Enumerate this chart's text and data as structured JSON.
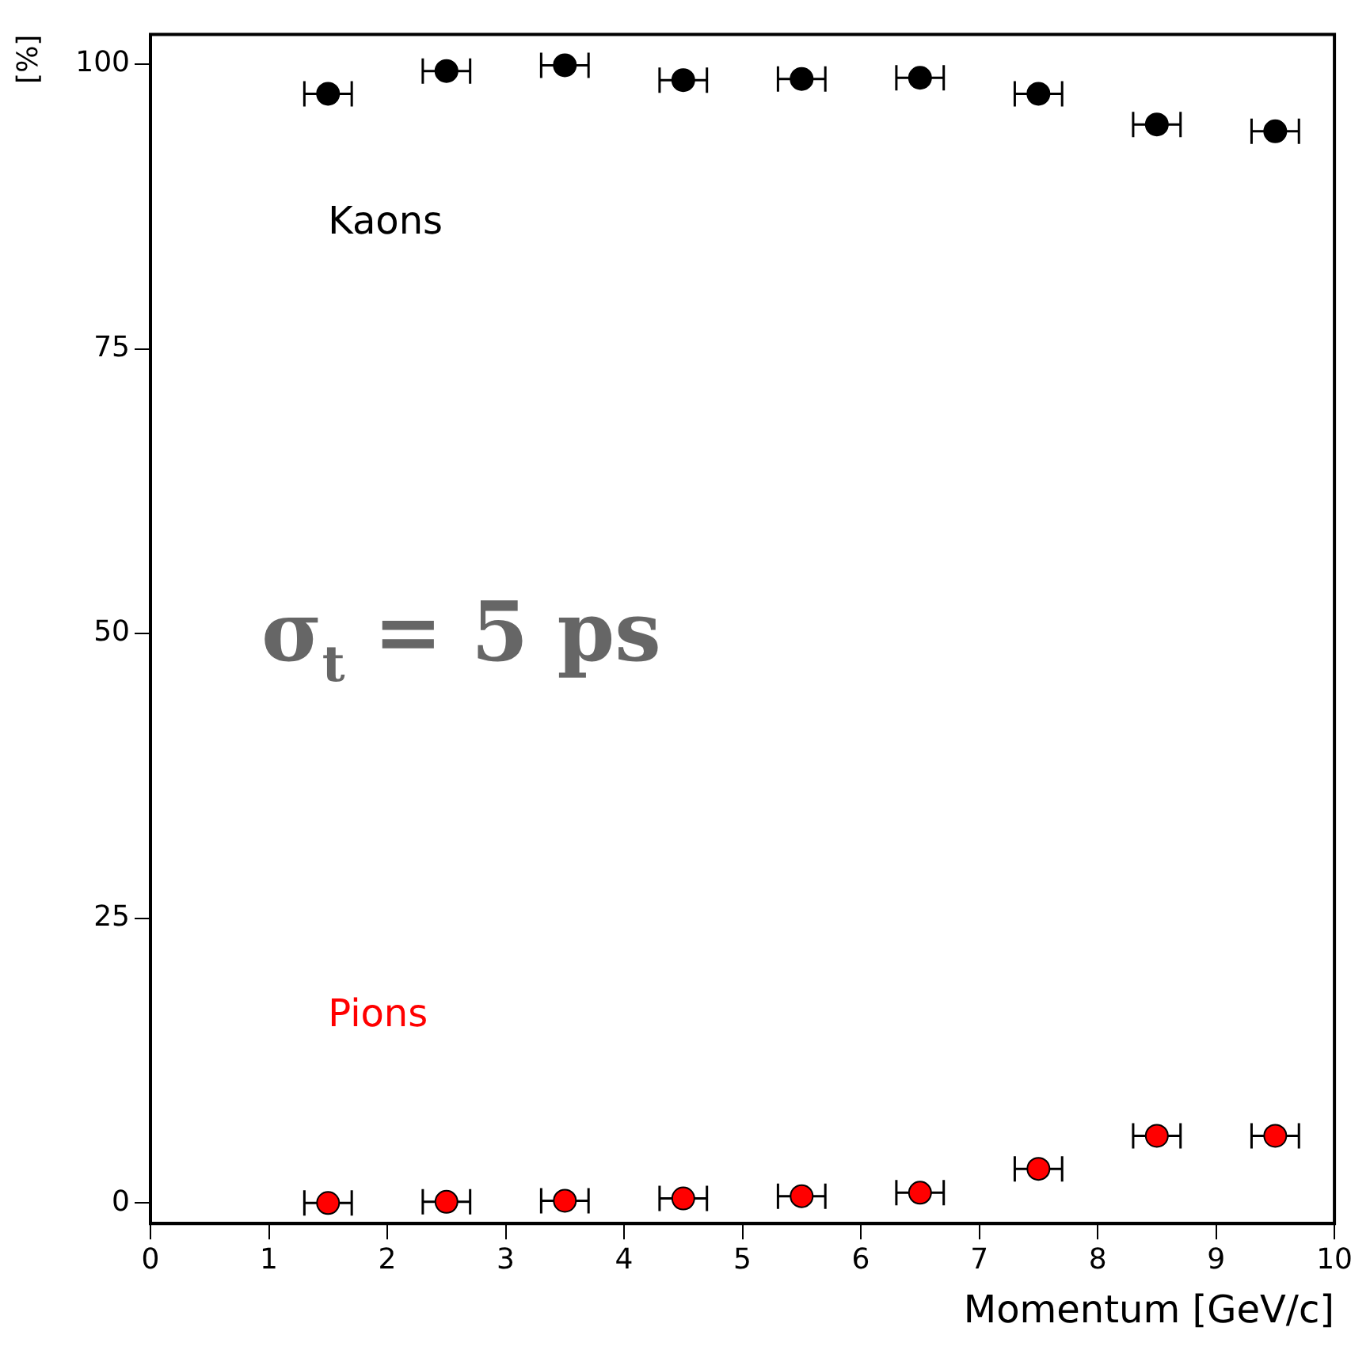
{
  "chart_data": {
    "type": "scatter",
    "xlabel": "Momentum [GeV/c]",
    "ylabel": "[%]",
    "annotations": [
      "σ$_{t}$ = 5 ps"
    ],
    "xlim": [
      0,
      10
    ],
    "ylim": [
      -1.8,
      102.6
    ],
    "xticks": [
      0,
      1,
      2,
      3,
      4,
      5,
      6,
      7,
      8,
      9,
      10
    ],
    "yticks": [
      0,
      25,
      50,
      75,
      100
    ],
    "marker": "circle",
    "grid": false,
    "legend": false,
    "series": [
      {
        "name": "Kaons",
        "color": "#000000",
        "x": [
          1.5,
          2.5,
          3.5,
          4.5,
          5.5,
          6.5,
          7.5,
          8.5,
          9.5
        ],
        "values": [
          97.4,
          99.4,
          99.9,
          98.6,
          98.7,
          98.8,
          97.4,
          94.7,
          94.1
        ],
        "xerrors": [
          0.2,
          0.2,
          0.2,
          0.2,
          0.2,
          0.2,
          0.2,
          0.2,
          0.2
        ]
      },
      {
        "name": "Pions",
        "color": "#ff0000",
        "x": [
          1.5,
          2.5,
          3.5,
          4.5,
          5.5,
          6.5,
          7.5,
          8.5,
          9.5
        ],
        "values": [
          0,
          0.1,
          0.2,
          0.4,
          0.6,
          0.9,
          3,
          5.9,
          5.9
        ],
        "xerrors": [
          0.2,
          0.2,
          0.2,
          0.2,
          0.2,
          0.2,
          0.2,
          0.2,
          0.2
        ]
      }
    ]
  }
}
